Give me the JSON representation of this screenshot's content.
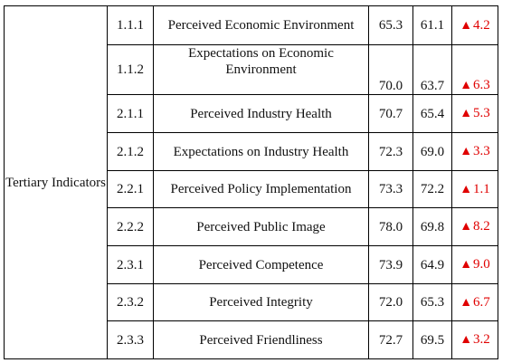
{
  "group_label": "Tertiary Indicators",
  "arrow_glyph": "▲",
  "change_color": "#e00000",
  "rows": [
    {
      "code": "1.1.1",
      "name": "Perceived Economic Environment",
      "current": "65.3",
      "previous": "61.1",
      "change": "4.2"
    },
    {
      "code": "1.1.2",
      "name": "Expectations on Economic Environment",
      "current": "70.0",
      "previous": "63.7",
      "change": "6.3"
    },
    {
      "code": "2.1.1",
      "name": "Perceived Industry Health",
      "current": "70.7",
      "previous": "65.4",
      "change": "5.3"
    },
    {
      "code": "2.1.2",
      "name": "Expectations on Industry Health",
      "current": "72.3",
      "previous": "69.0",
      "change": "3.3"
    },
    {
      "code": "2.2.1",
      "name": "Perceived Policy Implementation",
      "current": "73.3",
      "previous": "72.2",
      "change": "1.1"
    },
    {
      "code": "2.2.2",
      "name": "Perceived Public Image",
      "current": "78.0",
      "previous": "69.8",
      "change": "8.2"
    },
    {
      "code": "2.3.1",
      "name": "Perceived Competence",
      "current": "73.9",
      "previous": "64.9",
      "change": "9.0"
    },
    {
      "code": "2.3.2",
      "name": "Perceived Integrity",
      "current": "72.0",
      "previous": "65.3",
      "change": "6.7"
    },
    {
      "code": "2.3.3",
      "name": "Perceived Friendliness",
      "current": "72.7",
      "previous": "69.5",
      "change": "3.2"
    }
  ]
}
